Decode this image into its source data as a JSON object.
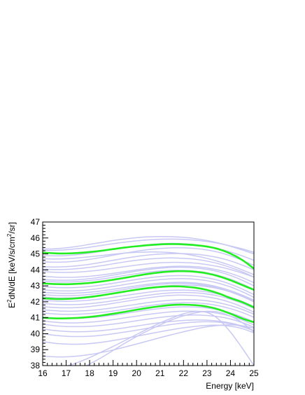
{
  "chart_data": {
    "type": "line",
    "title": "",
    "xlabel": "Energy [keV]",
    "ylabel": {
      "prefix": "E",
      "sup1": "2",
      "middle": "dN/dE [keV/s/cm",
      "sup2": "2",
      "suffix": "/sr]"
    },
    "xlim": [
      16,
      25
    ],
    "ylim": [
      38,
      47
    ],
    "x_ticks": [
      16,
      17,
      18,
      19,
      20,
      21,
      22,
      23,
      24,
      25
    ],
    "y_ticks": [
      38,
      39,
      40,
      41,
      42,
      43,
      44,
      45,
      46,
      47
    ],
    "grid": false,
    "legend": "none",
    "colors": {
      "highlight": "#22ee22",
      "background_series": "#c8c8f4",
      "axis": "#000000"
    },
    "x": [
      16,
      16.5,
      17,
      17.5,
      18,
      18.5,
      19,
      19.5,
      20,
      20.5,
      21,
      21.5,
      22,
      22.5,
      23,
      23.5,
      24,
      24.5,
      25
    ],
    "highlighted_series": [
      {
        "values": [
          45.08,
          45.04,
          45.03,
          45.06,
          45.12,
          45.2,
          45.3,
          45.4,
          45.48,
          45.55,
          45.6,
          45.62,
          45.6,
          45.55,
          45.46,
          45.3,
          45.02,
          44.62,
          44.08
        ]
      },
      {
        "values": [
          43.15,
          43.11,
          43.1,
          43.13,
          43.18,
          43.27,
          43.38,
          43.5,
          43.63,
          43.75,
          43.84,
          43.9,
          43.92,
          43.88,
          43.78,
          43.6,
          43.35,
          43.05,
          42.75
        ]
      },
      {
        "values": [
          42.22,
          42.18,
          42.18,
          42.22,
          42.3,
          42.4,
          42.52,
          42.64,
          42.76,
          42.86,
          42.93,
          42.97,
          42.95,
          42.88,
          42.74,
          42.52,
          42.23,
          41.98,
          41.65
        ]
      },
      {
        "values": [
          41,
          40.96,
          40.96,
          40.99,
          41.05,
          41.14,
          41.25,
          41.37,
          41.5,
          41.62,
          41.72,
          41.8,
          41.82,
          41.79,
          41.7,
          41.52,
          41.25,
          40.95,
          40.72
        ]
      }
    ],
    "background_series": [
      {
        "values": [
          45.3,
          45.32,
          45.38,
          45.48,
          45.6,
          45.72,
          45.84,
          45.94,
          46.02,
          46.07,
          46.09,
          46.08,
          46.04,
          45.96,
          45.84,
          45.68,
          45.48,
          45.25,
          45
        ]
      },
      {
        "values": [
          45.22,
          45.22,
          45.26,
          45.33,
          45.42,
          45.53,
          45.64,
          45.74,
          45.82,
          45.88,
          45.92,
          45.93,
          45.91,
          45.86,
          45.78,
          45.66,
          45.5,
          45.32,
          45.1
        ]
      },
      {
        "values": [
          44.9,
          44.88,
          44.9,
          44.96,
          45.05,
          45.16,
          45.28,
          45.4,
          45.5,
          45.58,
          45.64,
          45.66,
          45.64,
          45.58,
          45.47,
          45.32,
          45.12,
          44.88,
          44.6
        ]
      },
      {
        "values": [
          44.5,
          44.48,
          44.5,
          44.56,
          44.66,
          44.78,
          44.92,
          45.05,
          45.17,
          45.27,
          45.34,
          45.38,
          45.38,
          45.34,
          45.25,
          45.1,
          44.88,
          44.6,
          44.28
        ]
      },
      {
        "values": [
          44.2,
          44.18,
          44.2,
          44.26,
          44.35,
          44.47,
          44.6,
          44.73,
          44.84,
          44.93,
          44.99,
          45.02,
          45.02,
          44.98,
          44.9,
          44.76,
          44.56,
          44.3,
          44
        ]
      },
      {
        "values": [
          44.05,
          44.02,
          44.03,
          44.08,
          44.16,
          44.26,
          44.38,
          44.5,
          44.6,
          44.68,
          44.73,
          44.75,
          44.72,
          44.66,
          44.55,
          44.38,
          44.15,
          43.88,
          43.55
        ]
      },
      {
        "values": [
          43.9,
          43.85,
          43.84,
          43.86,
          43.92,
          44,
          44.1,
          44.2,
          44.3,
          44.38,
          44.44,
          44.47,
          44.46,
          44.42,
          44.33,
          44.2,
          44.02,
          43.8,
          43.55
        ]
      },
      {
        "values": [
          43.6,
          43.55,
          43.53,
          43.55,
          43.6,
          43.68,
          43.78,
          43.89,
          44,
          44.1,
          44.17,
          44.22,
          44.23,
          44.2,
          44.12,
          43.98,
          43.78,
          43.52,
          43.2
        ]
      },
      {
        "values": [
          43.4,
          43.36,
          43.35,
          43.38,
          43.45,
          43.55,
          43.67,
          43.8,
          43.92,
          44.02,
          44.1,
          44.15,
          44.16,
          44.12,
          44.03,
          43.88,
          43.65,
          43.35,
          43
        ]
      },
      {
        "values": [
          43.3,
          43.25,
          43.24,
          43.27,
          43.33,
          43.42,
          43.53,
          43.65,
          43.76,
          43.86,
          43.93,
          43.97,
          43.97,
          43.92,
          43.82,
          43.65,
          43.42,
          43.12,
          42.78
        ]
      },
      {
        "values": [
          42.95,
          42.9,
          42.88,
          42.9,
          42.96,
          43.05,
          43.16,
          43.28,
          43.4,
          43.5,
          43.58,
          43.63,
          43.64,
          43.6,
          43.5,
          43.34,
          43.1,
          42.8,
          42.45
        ]
      },
      {
        "values": [
          42.75,
          42.7,
          42.68,
          42.7,
          42.76,
          42.85,
          42.96,
          43.08,
          43.2,
          43.31,
          43.39,
          43.44,
          43.45,
          43.41,
          43.32,
          43.16,
          42.93,
          42.63,
          42.28
        ]
      },
      {
        "values": [
          42.6,
          42.55,
          42.53,
          42.55,
          42.6,
          42.68,
          42.78,
          42.89,
          43,
          43.1,
          43.17,
          43.21,
          43.22,
          43.18,
          43.08,
          42.92,
          42.7,
          42.42,
          42.1
        ]
      },
      {
        "values": [
          42.45,
          42.4,
          42.38,
          42.4,
          42.46,
          42.55,
          42.66,
          42.78,
          42.9,
          43.01,
          43.09,
          43.14,
          43.15,
          43.11,
          43.01,
          42.85,
          42.62,
          42.33,
          42
        ]
      },
      {
        "values": [
          42.3,
          42.25,
          42.24,
          42.27,
          42.33,
          42.42,
          42.53,
          42.65,
          42.77,
          42.88,
          42.96,
          43.02,
          43.04,
          43.02,
          42.95,
          42.82,
          42.62,
          42.35,
          42.02
        ]
      },
      {
        "values": [
          42.1,
          42.05,
          42.03,
          42.05,
          42.1,
          42.18,
          42.28,
          42.39,
          42.5,
          42.6,
          42.68,
          42.72,
          42.73,
          42.7,
          42.62,
          42.48,
          42.28,
          42.02,
          41.7
        ]
      },
      {
        "values": [
          41.9,
          41.84,
          41.82,
          41.83,
          41.88,
          41.96,
          42.06,
          42.18,
          42.3,
          42.41,
          42.5,
          42.56,
          42.58,
          42.56,
          42.49,
          42.36,
          42.16,
          41.9,
          41.58
        ]
      },
      {
        "values": [
          41.7,
          41.64,
          41.62,
          41.64,
          41.7,
          41.79,
          41.9,
          42.02,
          42.14,
          42.25,
          42.34,
          42.4,
          42.42,
          42.39,
          42.31,
          42.17,
          41.96,
          41.68,
          41.35
        ]
      },
      {
        "values": [
          41.5,
          41.44,
          41.41,
          41.42,
          41.46,
          41.53,
          41.62,
          41.73,
          41.84,
          41.95,
          42.04,
          42.1,
          42.13,
          42.12,
          42.06,
          41.94,
          41.76,
          41.52,
          41.22
        ]
      },
      {
        "values": [
          41.3,
          41.24,
          41.21,
          41.22,
          41.26,
          41.33,
          41.42,
          41.53,
          41.64,
          41.75,
          41.84,
          41.91,
          41.94,
          41.93,
          41.87,
          41.75,
          41.57,
          41.33,
          41.03
        ]
      },
      {
        "values": [
          41.05,
          40.98,
          40.95,
          40.96,
          41,
          41.07,
          41.16,
          41.27,
          41.38,
          41.49,
          41.58,
          41.65,
          41.68,
          41.67,
          41.61,
          41.49,
          41.3,
          41.05,
          40.75
        ]
      },
      {
        "values": [
          40.8,
          40.72,
          40.68,
          40.68,
          40.72,
          40.79,
          40.88,
          40.99,
          41.1,
          41.21,
          41.3,
          41.37,
          41.41,
          41.41,
          41.37,
          41.27,
          41.1,
          40.86,
          40.55
        ]
      },
      {
        "values": [
          40.6,
          40.5,
          40.45,
          40.44,
          40.46,
          40.52,
          40.6,
          40.7,
          40.81,
          40.92,
          41.02,
          41.1,
          41.15,
          41.17,
          41.14,
          41.06,
          40.92,
          40.7,
          40.4
        ]
      },
      {
        "values": [
          40.3,
          40.2,
          40.14,
          40.12,
          40.14,
          40.19,
          40.27,
          40.37,
          40.48,
          40.59,
          40.69,
          40.77,
          40.83,
          40.86,
          40.85,
          40.79,
          40.67,
          40.48,
          40.2
        ]
      },
      {
        "values": [
          40,
          39.9,
          39.84,
          39.82,
          39.84,
          39.9,
          39.99,
          40.1,
          40.22,
          40.35,
          40.47,
          40.58,
          40.67,
          40.73,
          40.75,
          40.72,
          40.62,
          40.44,
          40.18
        ]
      },
      {
        "values": [
          39.5,
          39.4,
          39.35,
          39.34,
          39.38,
          39.46,
          39.57,
          39.7,
          39.84,
          39.98,
          40.12,
          40.25,
          40.37,
          40.46,
          40.52,
          40.53,
          40.47,
          40.32,
          40.05
        ]
      },
      {
        "values": [
          38.6,
          38.55,
          38.55,
          38.6,
          38.69,
          38.82,
          38.98,
          39.16,
          39.35,
          39.55,
          39.75,
          39.94,
          40.12,
          40.29,
          40.43,
          40.52,
          40.55,
          40.5,
          40.35
        ]
      },
      {
        "values": [
          36.5,
          36.9,
          37.3,
          37.7,
          38.1,
          38.5,
          38.95,
          39.4,
          39.82,
          40.2,
          40.55,
          40.87,
          41.12,
          41.3,
          41.4,
          41.35,
          41.1,
          40.7,
          40.1
        ]
      },
      {
        "values": [
          37.5,
          37.7,
          37.95,
          38.2,
          38.5,
          38.85,
          39.2,
          39.57,
          39.95,
          40.32,
          40.67,
          40.98,
          41.25,
          41.38,
          41.33,
          40.9,
          40.1,
          39.1,
          38
        ]
      },
      {
        "values": [
          44.7,
          44.68,
          44.7,
          44.75,
          44.82,
          44.9,
          44.98,
          45.05,
          45.1,
          45.12,
          45.12,
          45.08,
          45,
          44.88,
          44.72,
          44.52,
          44.28,
          44,
          43.7
        ]
      }
    ]
  }
}
